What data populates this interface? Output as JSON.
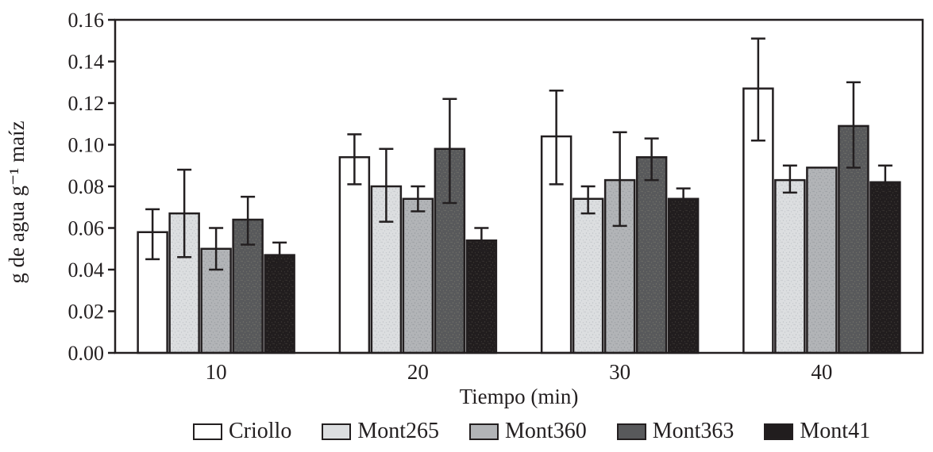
{
  "figure": {
    "background": "#ffffff",
    "axis_color": "#231f20",
    "text_color": "#231f20"
  },
  "chart_data": {
    "type": "bar",
    "title": "",
    "xlabel": "Tiempo (min)",
    "ylabel": "g de agua g⁻¹ maíz",
    "categories": [
      "10",
      "20",
      "30",
      "40"
    ],
    "ylim": [
      0,
      0.16
    ],
    "ytick_step": 0.02,
    "ytick_labels": [
      "0.00",
      "0.02",
      "0.04",
      "0.06",
      "0.08",
      "0.10",
      "0.12",
      "0.14",
      "0.16"
    ],
    "grid": false,
    "legend_position": "bottom",
    "error_bars": true,
    "series": [
      {
        "name": "Criollo",
        "color": "#ffffff",
        "values": [
          0.058,
          0.094,
          0.104,
          0.127
        ],
        "err_up": [
          0.011,
          0.011,
          0.022,
          0.024
        ],
        "err_down": [
          0.013,
          0.013,
          0.023,
          0.025
        ]
      },
      {
        "name": "Mont265",
        "color": "#dcdee0",
        "values": [
          0.067,
          0.08,
          0.074,
          0.083
        ],
        "err_up": [
          0.021,
          0.018,
          0.006,
          0.007
        ],
        "err_down": [
          0.021,
          0.017,
          0.007,
          0.006
        ]
      },
      {
        "name": "Mont360",
        "color": "#b2b4b7",
        "values": [
          0.05,
          0.074,
          0.083,
          0.089
        ],
        "err_up": [
          0.01,
          0.006,
          0.023,
          0
        ],
        "err_down": [
          0.01,
          0.006,
          0.022,
          0
        ]
      },
      {
        "name": "Mont363",
        "color": "#58595b",
        "values": [
          0.064,
          0.098,
          0.094,
          0.109
        ],
        "err_up": [
          0.011,
          0.024,
          0.009,
          0.021
        ],
        "err_down": [
          0.012,
          0.026,
          0.011,
          0.02
        ]
      },
      {
        "name": "Mont41",
        "color": "#211d1e",
        "values": [
          0.047,
          0.054,
          0.074,
          0.082
        ],
        "err_up": [
          0.006,
          0.006,
          0.005,
          0.008
        ],
        "err_down": [
          0.005,
          0.005,
          0.004,
          0.007
        ]
      }
    ]
  }
}
